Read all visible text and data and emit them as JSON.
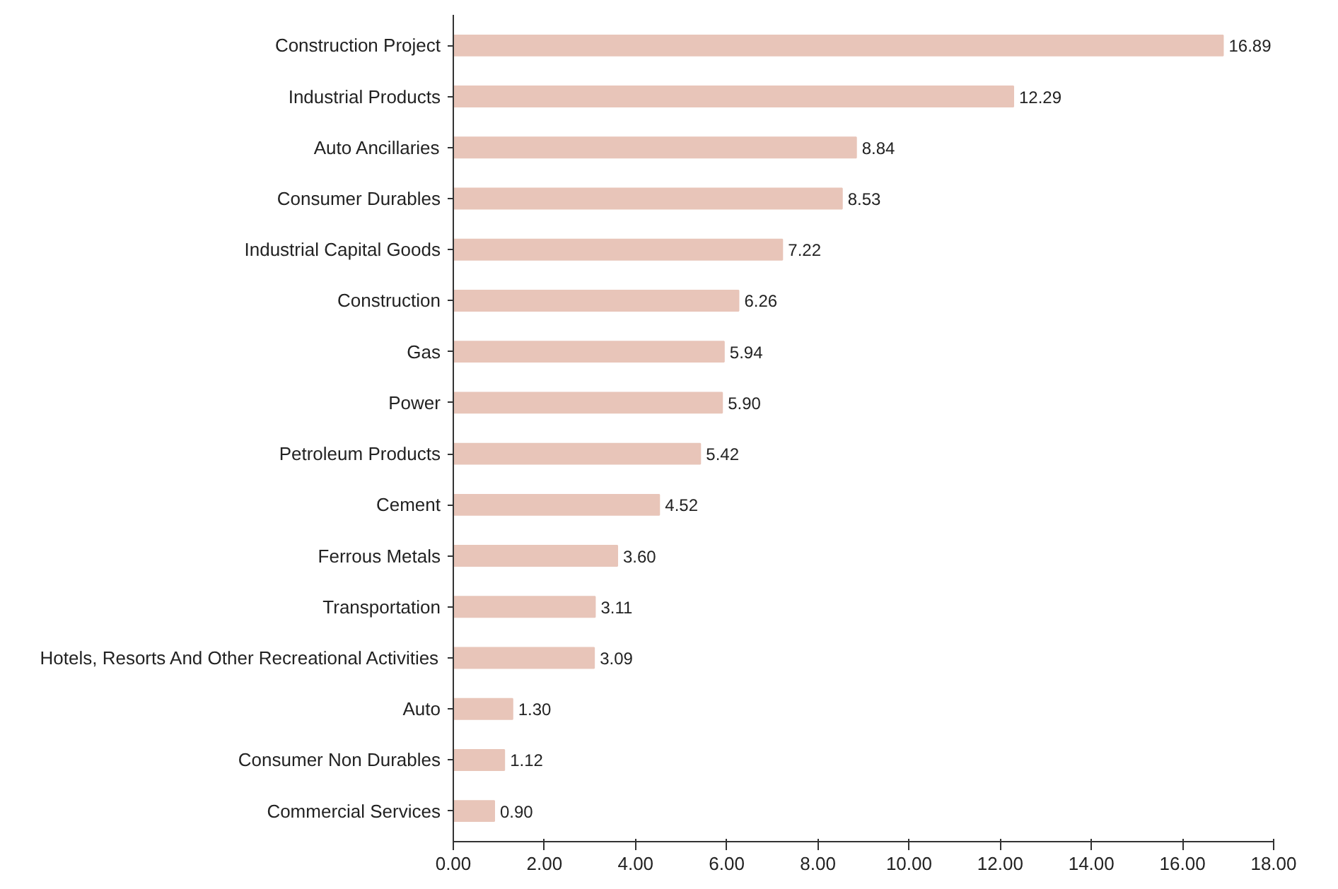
{
  "chart_data": {
    "type": "bar",
    "orientation": "horizontal",
    "categories": [
      "Construction Project",
      "Industrial Products",
      "Auto Ancillaries",
      "Consumer Durables",
      "Industrial Capital Goods",
      "Construction",
      "Gas",
      "Power",
      "Petroleum Products",
      "Cement",
      "Ferrous Metals",
      "Transportation",
      "Hotels, Resorts And Other Recreational Activities",
      "Auto",
      "Consumer Non Durables",
      "Commercial Services"
    ],
    "values": [
      16.89,
      12.29,
      8.84,
      8.53,
      7.22,
      6.26,
      5.94,
      5.9,
      5.42,
      4.52,
      3.6,
      3.11,
      3.09,
      1.3,
      1.12,
      0.9
    ],
    "value_labels": [
      "16.89",
      "12.29",
      "8.84",
      "8.53",
      "7.22",
      "6.26",
      "5.94",
      "5.90",
      "5.42",
      "4.52",
      "3.60",
      "3.11",
      "3.09",
      "1.30",
      "1.12",
      "0.90"
    ],
    "color": "#e8c5b9",
    "xlim": [
      0,
      18
    ],
    "xticks": [
      {
        "value": 0,
        "label": "0.00"
      },
      {
        "value": 2,
        "label": "2.00"
      },
      {
        "value": 4,
        "label": "4.00"
      },
      {
        "value": 6,
        "label": "6.00"
      },
      {
        "value": 8,
        "label": "8.00"
      },
      {
        "value": 10,
        "label": "10.00"
      },
      {
        "value": 12,
        "label": "12.00"
      },
      {
        "value": 14,
        "label": "14.00"
      },
      {
        "value": 16,
        "label": "16.00"
      },
      {
        "value": 18,
        "label": "18.00"
      }
    ],
    "grid": false
  }
}
